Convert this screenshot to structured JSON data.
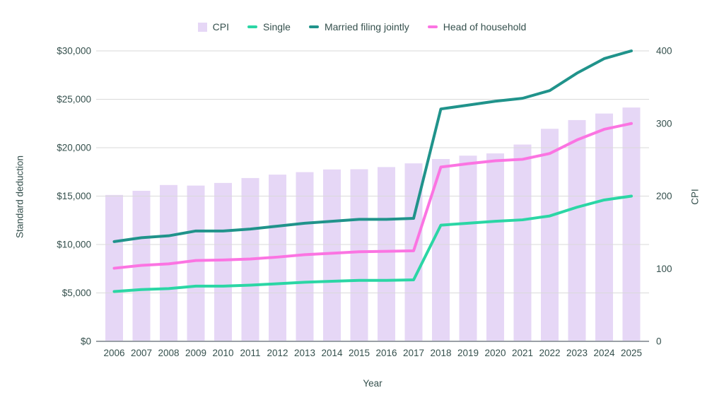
{
  "chart_data": {
    "type": "combo-bar-line",
    "x": [
      2006,
      2007,
      2008,
      2009,
      2010,
      2011,
      2012,
      2013,
      2014,
      2015,
      2016,
      2017,
      2018,
      2019,
      2020,
      2021,
      2022,
      2023,
      2024,
      2025
    ],
    "xlabel": "Year",
    "left_axis": {
      "title": "Standard deduction",
      "min": 0,
      "max": 30000,
      "tick_values": [
        0,
        5000,
        10000,
        15000,
        20000,
        25000,
        30000
      ],
      "tick_labels": [
        "$0",
        "$5,000",
        "$10,000",
        "$15,000",
        "$20,000",
        "$25,000",
        "$30,000"
      ]
    },
    "right_axis": {
      "title": "CPI",
      "min": 0,
      "max": 400,
      "tick_values": [
        0,
        100,
        200,
        300,
        400
      ],
      "tick_labels": [
        "0",
        "100",
        "200",
        "300",
        "400"
      ]
    },
    "bar_series": {
      "name": "CPI",
      "axis": "right",
      "color": "#e6d7f6",
      "values": [
        201.6,
        207.3,
        215.3,
        214.5,
        218.1,
        224.9,
        229.6,
        233.0,
        236.7,
        237.0,
        240.0,
        245.1,
        251.1,
        255.7,
        258.8,
        271.0,
        292.7,
        304.7,
        313.7,
        322.0
      ]
    },
    "line_series": [
      {
        "name": "Single",
        "axis": "left",
        "color": "#2bd6a5",
        "values": [
          5150,
          5350,
          5450,
          5700,
          5700,
          5800,
          5950,
          6100,
          6200,
          6300,
          6300,
          6350,
          12000,
          12200,
          12400,
          12550,
          12950,
          13850,
          14600,
          15000
        ]
      },
      {
        "name": "Married filing jointly",
        "axis": "left",
        "color": "#20938b",
        "values": [
          10300,
          10700,
          10900,
          11400,
          11400,
          11600,
          11900,
          12200,
          12400,
          12600,
          12600,
          12700,
          24000,
          24400,
          24800,
          25100,
          25900,
          27700,
          29200,
          30000
        ]
      },
      {
        "name": "Head of household",
        "axis": "left",
        "color": "#fb74e2",
        "values": [
          7550,
          7850,
          8000,
          8350,
          8400,
          8500,
          8700,
          8950,
          9100,
          9250,
          9300,
          9350,
          18000,
          18350,
          18650,
          18800,
          19400,
          20800,
          21900,
          22500
        ]
      }
    ],
    "legend": [
      {
        "label": "CPI",
        "swatch": "square",
        "color": "#e6d7f6"
      },
      {
        "label": "Single",
        "swatch": "line",
        "color": "#2bd6a5"
      },
      {
        "label": "Married filing jointly",
        "swatch": "line",
        "color": "#20938b"
      },
      {
        "label": "Head of household",
        "swatch": "line",
        "color": "#fb74e2"
      }
    ],
    "grid": true,
    "legend_position": "top",
    "gridline_color": "#dadada",
    "baseline_color": "#9aa0a6",
    "label_color": "#35504d"
  }
}
